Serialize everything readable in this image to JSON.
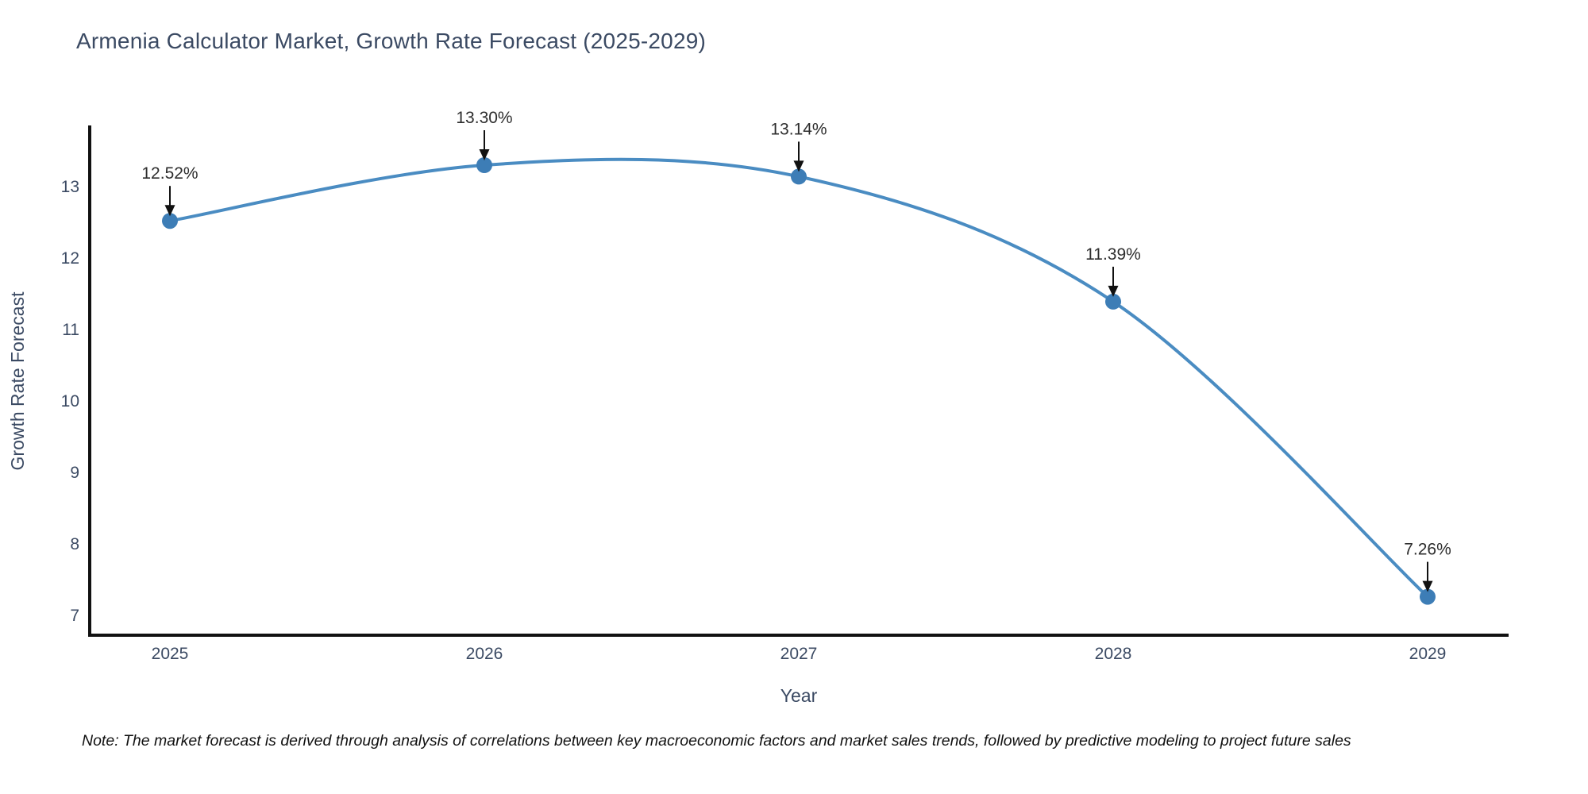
{
  "title": "Armenia Calculator Market, Growth Rate Forecast (2025-2029)",
  "note": "Note: The market forecast is derived through analysis of correlations between key macroeconomic factors and market sales trends, followed by predictive modeling to project future sales",
  "chart_data": {
    "type": "line",
    "title": "Armenia Calculator Market, Growth Rate Forecast (2025-2029)",
    "xlabel": "Year",
    "ylabel": "Growth Rate Forecast",
    "x": [
      "2025",
      "2026",
      "2027",
      "2028",
      "2029"
    ],
    "series": [
      {
        "name": "Growth Rate Forecast",
        "values": [
          12.52,
          13.3,
          13.14,
          11.39,
          7.26
        ],
        "point_labels": [
          "12.52%",
          "13.30%",
          "13.14%",
          "11.39%",
          "7.26%"
        ]
      }
    ],
    "line_shape": "spline",
    "markers": true,
    "annotations_arrows": true,
    "yticks": [
      7,
      8,
      9,
      10,
      11,
      12,
      13
    ],
    "ylim": [
      6.72,
      13.9
    ],
    "grid": false,
    "legend": "none",
    "colors": {
      "line": "#4a8cc2",
      "marker": "#3d7db6",
      "axis": "#111111",
      "title_text": "#3b4a63",
      "tick_text": "#3b4a63",
      "annotation_text": "#2e2e2e"
    }
  }
}
